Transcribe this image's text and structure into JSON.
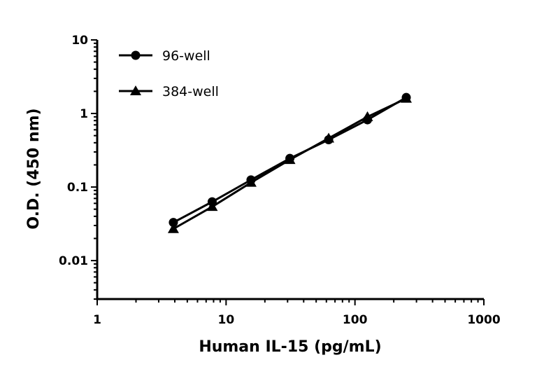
{
  "chart_data": {
    "type": "line",
    "xlabel": "Human IL-15 (pg/mL)",
    "ylabel": "O.D. (450 nm)",
    "xscale": "log",
    "yscale": "log",
    "xlim": [
      1,
      1000
    ],
    "ylim": [
      0.003,
      10
    ],
    "xticks": [
      "1",
      "10",
      "100",
      "1000"
    ],
    "yticks": [
      "0.01",
      "0.1",
      "1",
      "10"
    ],
    "grid": false,
    "legend_position": "top-left",
    "x": [
      3.9,
      7.8,
      15.6,
      31.25,
      62.5,
      125,
      250
    ],
    "series": [
      {
        "name": "96-well",
        "marker": "circle",
        "color": "#000000",
        "values": [
          0.033,
          0.063,
          0.125,
          0.245,
          0.44,
          0.82,
          1.65
        ]
      },
      {
        "name": "384-well",
        "marker": "triangle",
        "color": "#000000",
        "values": [
          0.027,
          0.054,
          0.115,
          0.235,
          0.46,
          0.9,
          1.6
        ]
      }
    ]
  }
}
